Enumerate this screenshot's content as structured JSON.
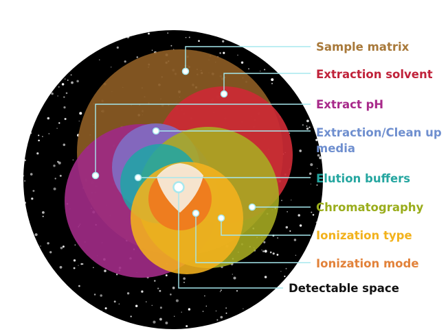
{
  "labels": [
    {
      "id": "sample-matrix",
      "text": "Sample matrix",
      "color": "#a8793a"
    },
    {
      "id": "extraction-solvent",
      "text": "Extraction solvent",
      "color": "#c0223a"
    },
    {
      "id": "extract-ph",
      "text": "Extract pH",
      "color": "#a8298a"
    },
    {
      "id": "extraction-cleanup-media",
      "text": "Extraction/Clean up media",
      "color": "#6f8fcf"
    },
    {
      "id": "elution-buffers",
      "text": "Elution buffers",
      "color": "#25a6a0"
    },
    {
      "id": "chromatography",
      "text": "Chromatography",
      "color": "#9aad1c"
    },
    {
      "id": "ionization-type",
      "text": "Ionization type",
      "color": "#f2b21c"
    },
    {
      "id": "ionization-mode",
      "text": "Ionization mode",
      "color": "#e2823a"
    },
    {
      "id": "detectable-space",
      "text": "Detectable space",
      "color": "#111111"
    }
  ],
  "colors": {
    "background_disc": "#000000",
    "leader_line": "#a6e8ee",
    "sample_matrix_fill": "#8a5a24",
    "extraction_solvent_fill": "#cc2a35",
    "extract_ph_fill": "#9e2a84",
    "cleanup_media_fill": "#7f6fc6",
    "elution_buffers_fill": "#1fa6a6",
    "chromatography_fill": "#a9ad22",
    "ionization_type_fill": "#f4b21e",
    "ionization_mode_fill": "#f0781e",
    "detectable_space_fill": "#f6ead8"
  }
}
